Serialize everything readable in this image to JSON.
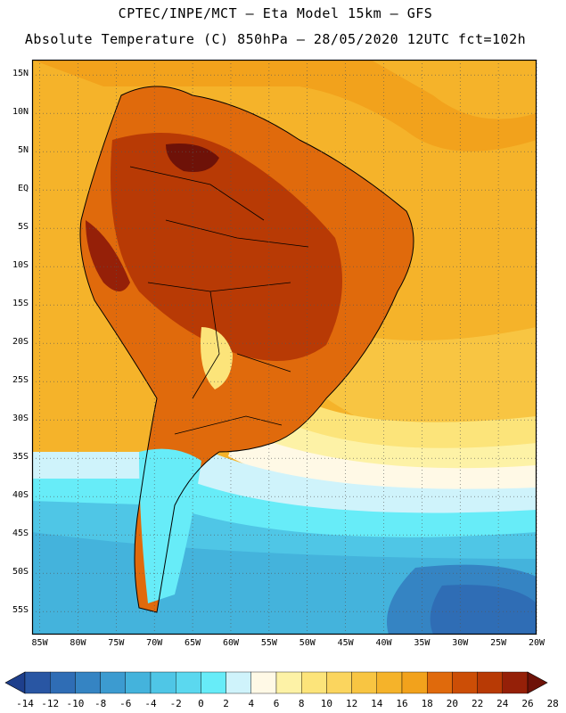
{
  "header": {
    "line1": "CPTEC/INPE/MCT —  Eta Model 15km — GFS",
    "line2": "Absolute Temperature (C) 850hPa — 28/05/2020 12UTC fct=102h"
  },
  "map": {
    "lat_labels": [
      "15N",
      "10N",
      "5N",
      "EQ",
      "5S",
      "10S",
      "15S",
      "20S",
      "25S",
      "30S",
      "35S",
      "40S",
      "45S",
      "50S",
      "55S"
    ],
    "lon_labels": [
      "85W",
      "80W",
      "75W",
      "70W",
      "65W",
      "60W",
      "55W",
      "50W",
      "45W",
      "40W",
      "35W",
      "30W",
      "25W",
      "20W"
    ],
    "lat_range": [
      -58,
      17
    ],
    "lon_range": [
      -86,
      -20
    ]
  },
  "colorbar": {
    "ticks": [
      "-14",
      "-12",
      "-10",
      "-8",
      "-6",
      "-4",
      "-2",
      "0",
      "2",
      "4",
      "6",
      "8",
      "10",
      "12",
      "14",
      "16",
      "18",
      "20",
      "22",
      "24",
      "26",
      "28"
    ],
    "colors": [
      "#1e3f8c",
      "#2956a3",
      "#2f6db5",
      "#3584c3",
      "#3c9bd0",
      "#44b3dc",
      "#4fc6e6",
      "#5bd8ef",
      "#67ecf8",
      "#cff3fb",
      "#fff9e6",
      "#fdf2a6",
      "#fce47a",
      "#fbd55e",
      "#f8c542",
      "#f5b32a",
      "#f2a21c",
      "#e06a0c",
      "#cc4e06",
      "#b83a05",
      "#952008",
      "#6e1208"
    ]
  }
}
